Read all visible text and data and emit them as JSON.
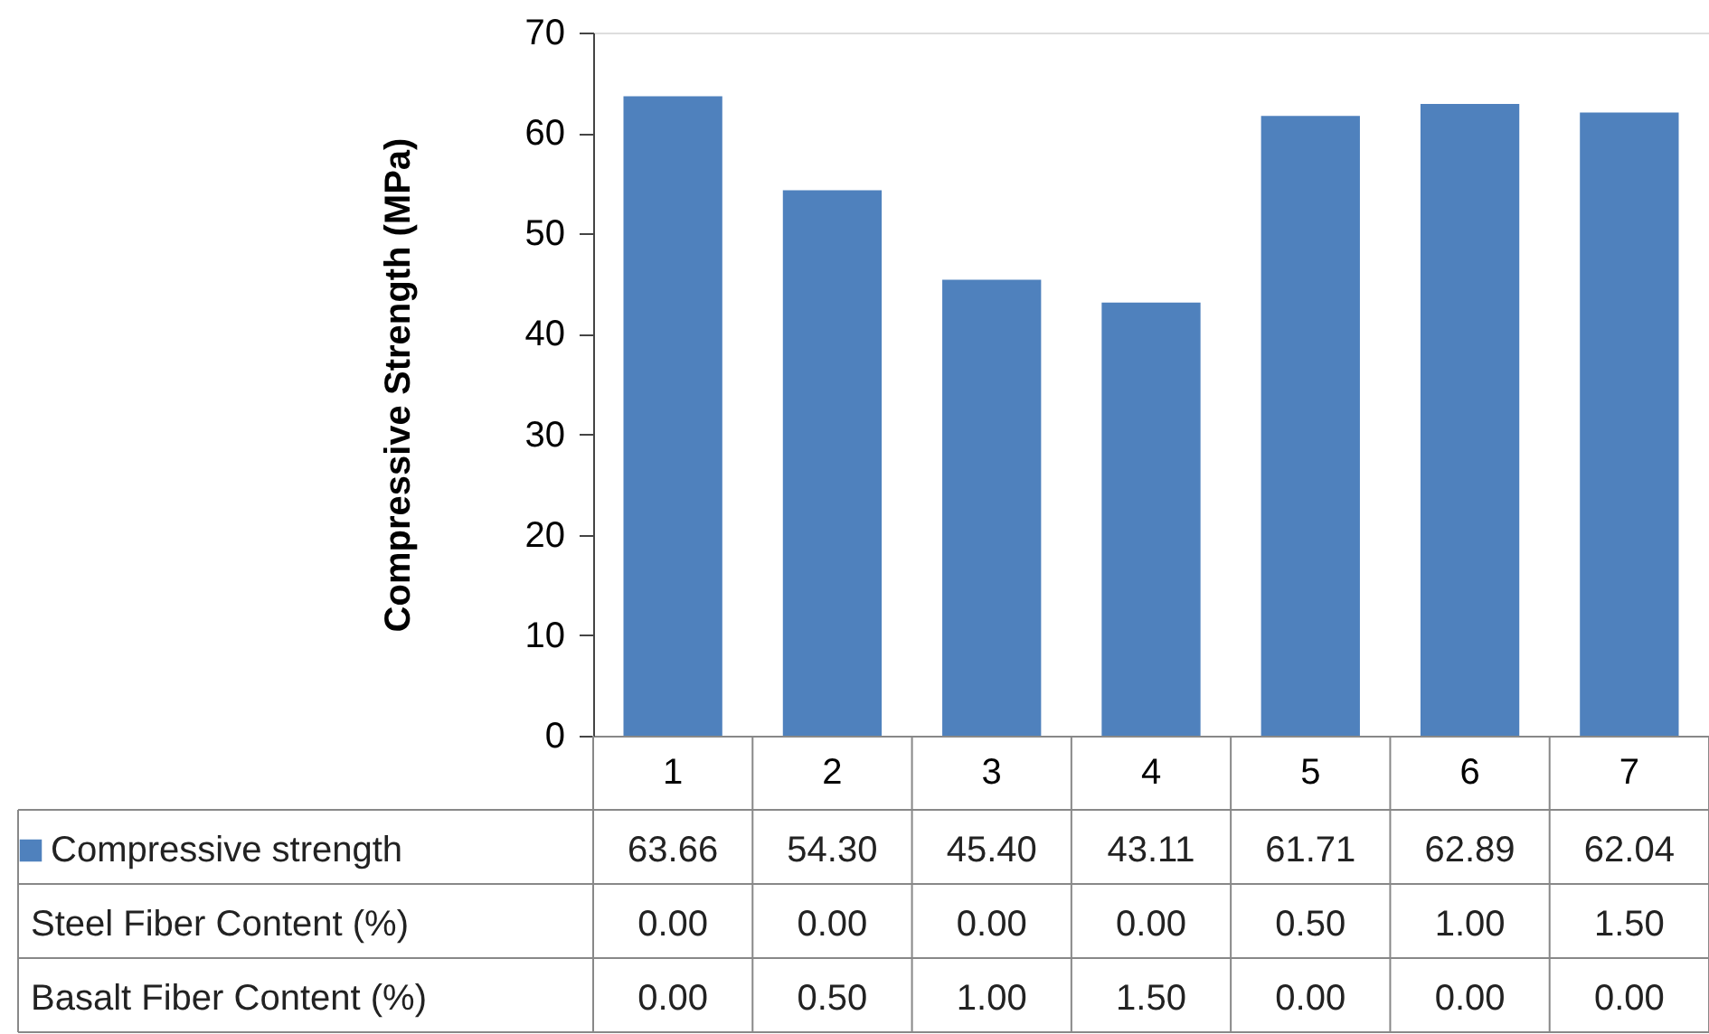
{
  "chart_data": {
    "type": "bar",
    "ylabel": "Compressive Strength (MPa)",
    "categories": [
      "1",
      "2",
      "3",
      "4",
      "5",
      "6",
      "7"
    ],
    "series": [
      {
        "name": "Compressive strength",
        "color": "#4f81bd",
        "values": [
          63.66,
          54.3,
          45.4,
          43.11,
          61.71,
          62.89,
          62.04
        ],
        "value_labels": [
          "63.66",
          "54.30",
          "45.40",
          "43.11",
          "61.71",
          "62.89",
          "62.04"
        ]
      }
    ],
    "ylim": [
      0,
      70
    ],
    "yticks": [
      0,
      10,
      20,
      30,
      40,
      50,
      60,
      70
    ],
    "grid": false,
    "annotations": [
      "Steel Fiber Content (%)",
      "0.00",
      "0.00",
      "0.00",
      "0.00",
      "0.50",
      "1.00",
      "1.50",
      "Basalt Fiber Content (%)",
      "0.00",
      "0.50",
      "1.00",
      "1.50",
      "0.00",
      "0.00",
      "0.00"
    ]
  }
}
